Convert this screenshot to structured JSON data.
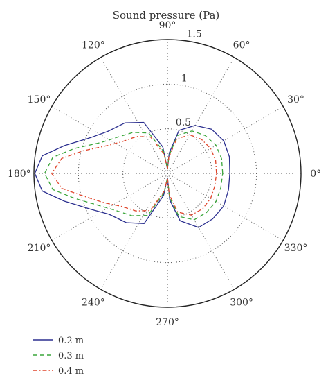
{
  "chart_data": {
    "type": "polar-line",
    "title": "Sound pressure (Pa)",
    "r_max": 1.5,
    "r_ticks": [
      {
        "value": 0.5,
        "label": "0.5"
      },
      {
        "value": 1.0,
        "label": "1"
      },
      {
        "value": 1.5,
        "label": "1.5"
      }
    ],
    "angle_ticks": [
      {
        "deg": 0,
        "label": "0°"
      },
      {
        "deg": 30,
        "label": "30°"
      },
      {
        "deg": 60,
        "label": "60°"
      },
      {
        "deg": 90,
        "label": "90°"
      },
      {
        "deg": 120,
        "label": "120°"
      },
      {
        "deg": 150,
        "label": "150°"
      },
      {
        "deg": 180,
        "label": "180°"
      },
      {
        "deg": 210,
        "label": "210°"
      },
      {
        "deg": 240,
        "label": "240°"
      },
      {
        "deg": 270,
        "label": "270°"
      },
      {
        "deg": 300,
        "label": "300°"
      },
      {
        "deg": 330,
        "label": "330°"
      }
    ],
    "grid": "dotted",
    "legend_position": "bottom-left",
    "series": [
      {
        "name": "0.2 m",
        "color": "#2b2f8f",
        "dash": "solid",
        "points": [
          [
            0,
            0.7
          ],
          [
            15,
            0.72
          ],
          [
            30,
            0.73
          ],
          [
            45,
            0.7
          ],
          [
            60,
            0.62
          ],
          [
            75,
            0.5
          ],
          [
            85,
            0.23
          ],
          [
            90,
            0.05
          ],
          [
            100,
            0.3
          ],
          [
            115,
            0.63
          ],
          [
            130,
            0.74
          ],
          [
            145,
            0.82
          ],
          [
            155,
            0.95
          ],
          [
            165,
            1.2
          ],
          [
            172,
            1.42
          ],
          [
            180,
            1.49
          ],
          [
            188,
            1.42
          ],
          [
            195,
            1.2
          ],
          [
            205,
            0.95
          ],
          [
            215,
            0.8
          ],
          [
            230,
            0.72
          ],
          [
            245,
            0.62
          ],
          [
            260,
            0.25
          ],
          [
            270,
            0.05
          ],
          [
            275,
            0.3
          ],
          [
            285,
            0.55
          ],
          [
            300,
            0.7
          ],
          [
            315,
            0.72
          ],
          [
            330,
            0.73
          ],
          [
            345,
            0.71
          ],
          [
            360,
            0.7
          ]
        ]
      },
      {
        "name": "0.3 m",
        "color": "#3aa63a",
        "dash": "6,4",
        "points": [
          [
            0,
            0.62
          ],
          [
            15,
            0.63
          ],
          [
            30,
            0.63
          ],
          [
            45,
            0.6
          ],
          [
            60,
            0.55
          ],
          [
            75,
            0.44
          ],
          [
            85,
            0.2
          ],
          [
            90,
            0.05
          ],
          [
            100,
            0.25
          ],
          [
            115,
            0.5
          ],
          [
            130,
            0.6
          ],
          [
            145,
            0.7
          ],
          [
            155,
            0.82
          ],
          [
            165,
            1.08
          ],
          [
            172,
            1.3
          ],
          [
            180,
            1.38
          ],
          [
            188,
            1.3
          ],
          [
            195,
            1.08
          ],
          [
            205,
            0.85
          ],
          [
            215,
            0.72
          ],
          [
            230,
            0.62
          ],
          [
            245,
            0.52
          ],
          [
            260,
            0.22
          ],
          [
            270,
            0.05
          ],
          [
            275,
            0.27
          ],
          [
            285,
            0.5
          ],
          [
            300,
            0.6
          ],
          [
            315,
            0.62
          ],
          [
            330,
            0.63
          ],
          [
            345,
            0.62
          ],
          [
            360,
            0.62
          ]
        ]
      },
      {
        "name": "0.4 m",
        "color": "#e0452b",
        "dash": "6,3,1.5,3",
        "points": [
          [
            0,
            0.55
          ],
          [
            15,
            0.56
          ],
          [
            30,
            0.56
          ],
          [
            45,
            0.54
          ],
          [
            60,
            0.5
          ],
          [
            75,
            0.4
          ],
          [
            85,
            0.18
          ],
          [
            90,
            0.05
          ],
          [
            100,
            0.22
          ],
          [
            115,
            0.45
          ],
          [
            130,
            0.54
          ],
          [
            145,
            0.62
          ],
          [
            155,
            0.74
          ],
          [
            165,
            0.98
          ],
          [
            172,
            1.2
          ],
          [
            180,
            1.3
          ],
          [
            188,
            1.2
          ],
          [
            195,
            0.98
          ],
          [
            205,
            0.78
          ],
          [
            215,
            0.64
          ],
          [
            230,
            0.55
          ],
          [
            245,
            0.46
          ],
          [
            260,
            0.2
          ],
          [
            270,
            0.05
          ],
          [
            275,
            0.24
          ],
          [
            285,
            0.45
          ],
          [
            300,
            0.54
          ],
          [
            315,
            0.56
          ],
          [
            330,
            0.56
          ],
          [
            345,
            0.55
          ],
          [
            360,
            0.55
          ]
        ]
      }
    ]
  }
}
